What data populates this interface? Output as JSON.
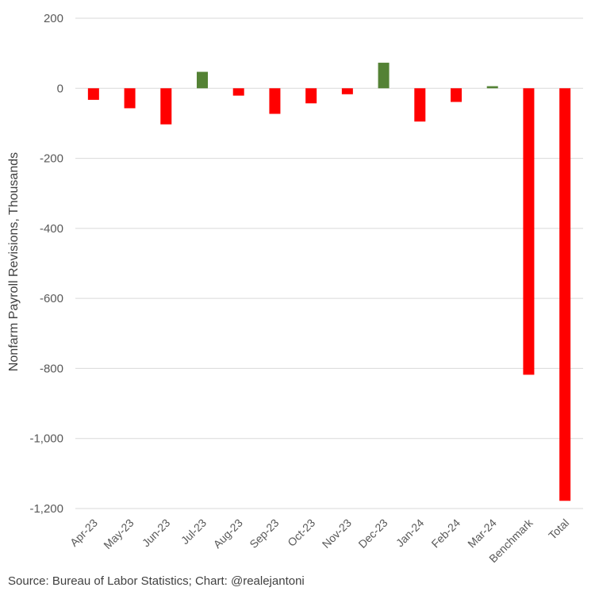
{
  "chart_data": {
    "type": "bar",
    "title": "",
    "xlabel": "",
    "ylabel": "Nonfarm Payroll Revisions, Thousands",
    "ylim": [
      -1200,
      200
    ],
    "yticks": [
      200,
      0,
      -200,
      -400,
      -600,
      -800,
      -1000,
      -1200
    ],
    "ytick_labels": [
      "200",
      "0",
      "-200",
      "-400",
      "-600",
      "-800",
      "-1,000",
      "-1,200"
    ],
    "grid": true,
    "categories": [
      "Apr-23",
      "May-23",
      "Jun-23",
      "Jul-23",
      "Aug-23",
      "Sep-23",
      "Oct-23",
      "Nov-23",
      "Dec-23",
      "Jan-24",
      "Feb-24",
      "Mar-24",
      "Benchmark",
      "Total"
    ],
    "values": [
      -33,
      -57,
      -103,
      47,
      -21,
      -73,
      -43,
      -17,
      73,
      -95,
      -39,
      6,
      -818,
      -1178
    ],
    "colors": {
      "positive": "#548235",
      "negative": "#ff0000",
      "grid": "#d9d9d9"
    }
  },
  "source": "Source: Bureau of Labor Statistics; Chart: @realejantoni"
}
